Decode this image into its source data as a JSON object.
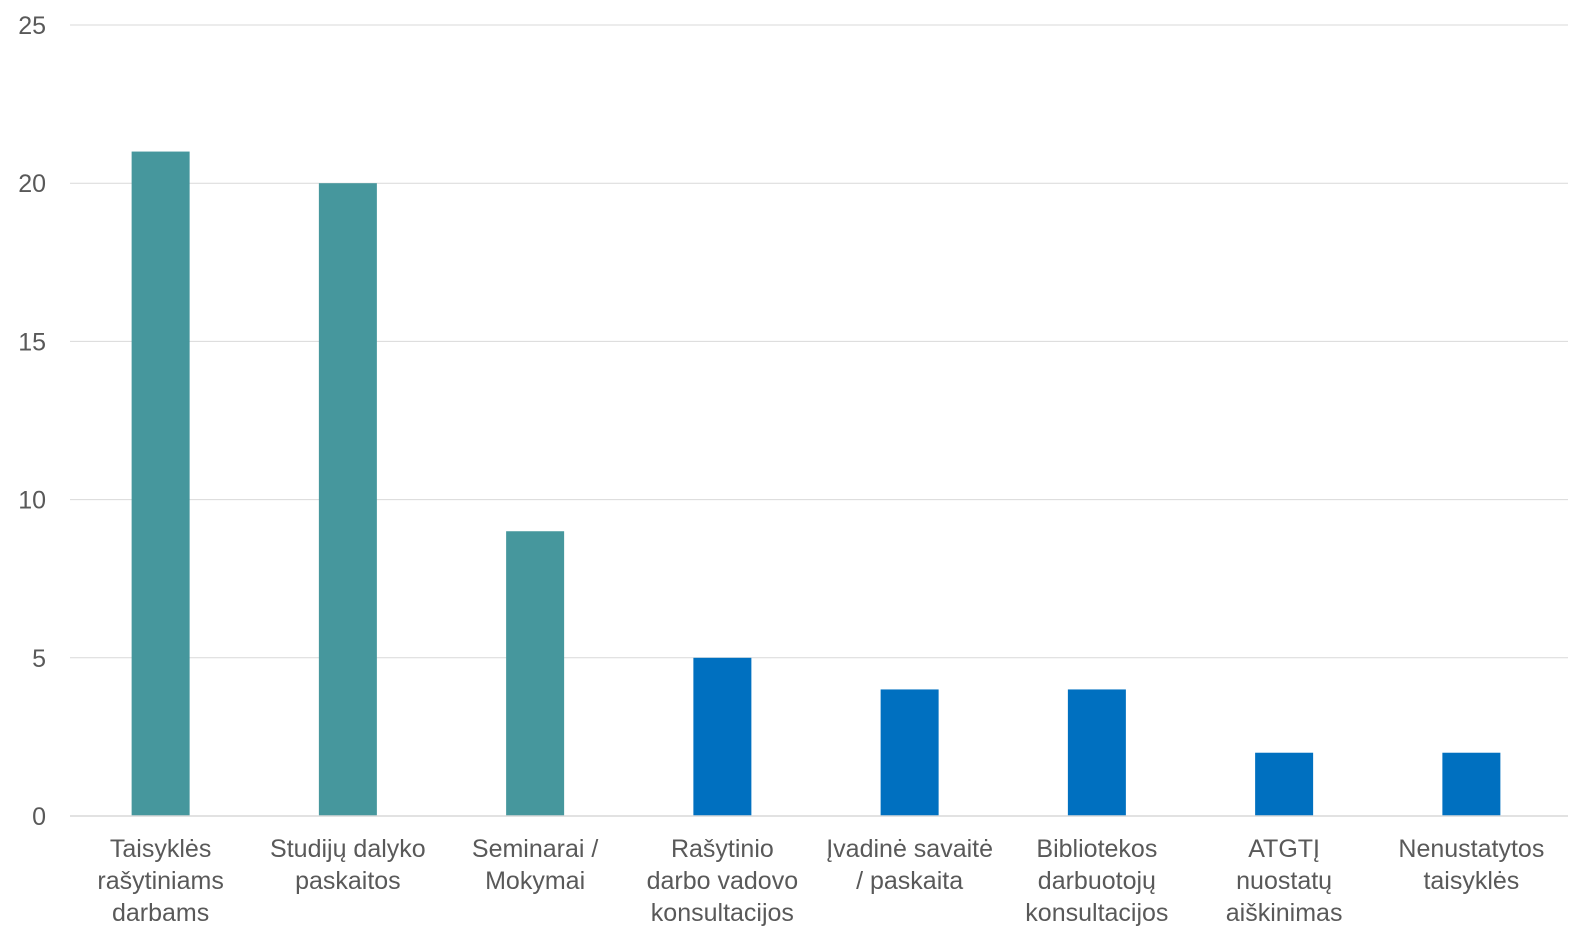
{
  "chart_data": {
    "type": "bar",
    "title": "",
    "xlabel": "",
    "ylabel": "",
    "ylim": [
      0,
      25
    ],
    "yticks": [
      0,
      5,
      10,
      15,
      20,
      25
    ],
    "grid": true,
    "legend": "none",
    "categories": [
      [
        "Taisyklės",
        "rašytiniams",
        "darbams"
      ],
      [
        "Studijų dalyko",
        "paskaitos"
      ],
      [
        "Seminarai /",
        "Mokymai"
      ],
      [
        "Rašytinio",
        "darbo vadovo",
        "konsultacijos"
      ],
      [
        "Įvadinė savaitė",
        "/ paskaita"
      ],
      [
        "Bibliotekos",
        "darbuotojų",
        "konsultacijos"
      ],
      [
        "ATGTĮ",
        "nuostatų",
        "aiškinimas"
      ],
      [
        "Nenustatytos",
        "taisyklės"
      ]
    ],
    "values": [
      21,
      20,
      9,
      5,
      4,
      4,
      2,
      2
    ],
    "bar_colors": [
      "#46979d",
      "#46979d",
      "#46979d",
      "#0070c0",
      "#0070c0",
      "#0070c0",
      "#0070c0",
      "#0070c0"
    ]
  }
}
